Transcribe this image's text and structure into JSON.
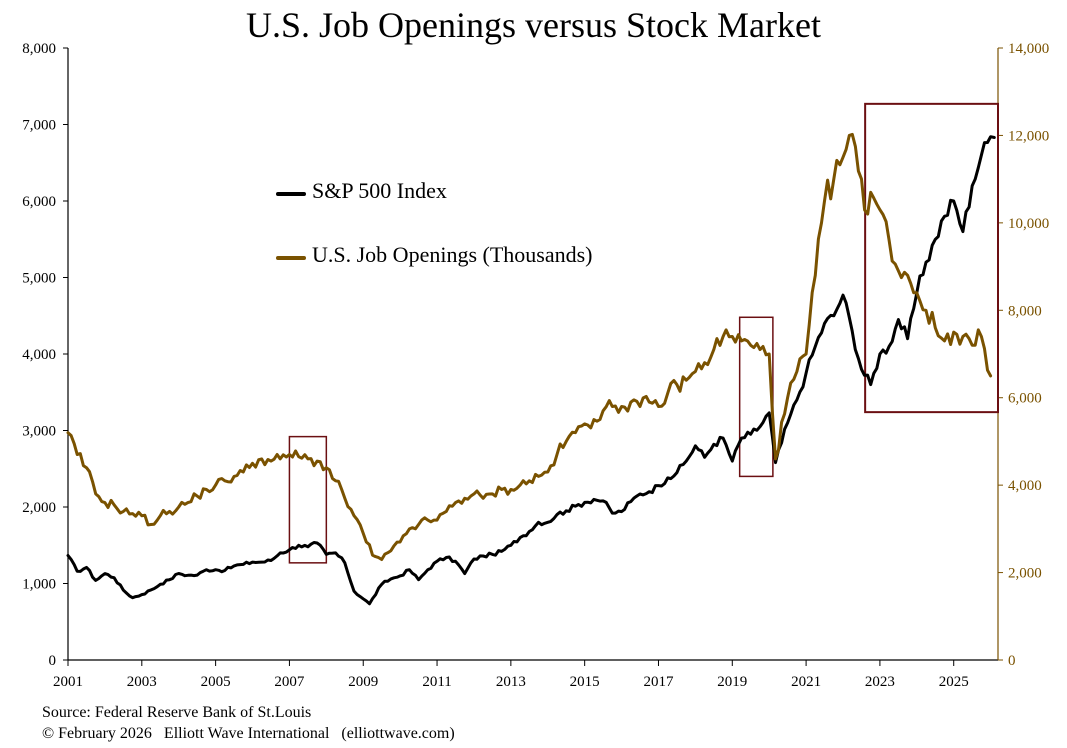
{
  "chart_data": {
    "type": "line",
    "title": "U.S. Job Openings versus Stock Market",
    "x_ticks": [
      "2001",
      "2003",
      "2005",
      "2007",
      "2009",
      "2011",
      "2013",
      "2015",
      "2017",
      "2019",
      "2021",
      "2023",
      "2025"
    ],
    "xlim": [
      2001,
      2026.2
    ],
    "left_axis": {
      "ylim": [
        0,
        8000
      ],
      "ticks": [
        "0",
        "1,000",
        "2,000",
        "3,000",
        "4,000",
        "5,000",
        "6,000",
        "7,000",
        "8,000"
      ],
      "color": "#000000"
    },
    "right_axis": {
      "ylim": [
        0,
        14000
      ],
      "ticks": [
        "0",
        "2,000",
        "4,000",
        "6,000",
        "8,000",
        "10,000",
        "12,000",
        "14,000"
      ],
      "color": "#7a5200"
    },
    "legend": {
      "placement": "upper-left"
    },
    "series": [
      {
        "name": "S&P 500 Index",
        "axis": "left",
        "color": "#000000",
        "points": [
          [
            2001.0,
            1366
          ],
          [
            2001.25,
            1160
          ],
          [
            2001.5,
            1211
          ],
          [
            2001.75,
            1040
          ],
          [
            2002.0,
            1130
          ],
          [
            2002.25,
            1076
          ],
          [
            2002.5,
            912
          ],
          [
            2002.75,
            815
          ],
          [
            2003.0,
            855
          ],
          [
            2003.25,
            916
          ],
          [
            2003.5,
            990
          ],
          [
            2003.75,
            1050
          ],
          [
            2004.0,
            1131
          ],
          [
            2004.25,
            1107
          ],
          [
            2004.5,
            1110
          ],
          [
            2004.75,
            1180
          ],
          [
            2005.0,
            1180
          ],
          [
            2005.25,
            1170
          ],
          [
            2005.5,
            1230
          ],
          [
            2005.75,
            1250
          ],
          [
            2006.0,
            1280
          ],
          [
            2006.25,
            1280
          ],
          [
            2006.5,
            1300
          ],
          [
            2006.75,
            1400
          ],
          [
            2007.0,
            1440
          ],
          [
            2007.25,
            1500
          ],
          [
            2007.5,
            1480
          ],
          [
            2007.75,
            1530
          ],
          [
            2008.0,
            1380
          ],
          [
            2008.25,
            1400
          ],
          [
            2008.5,
            1270
          ],
          [
            2008.75,
            900
          ],
          [
            2009.0,
            800
          ],
          [
            2009.17,
            735
          ],
          [
            2009.5,
            990
          ],
          [
            2009.75,
            1060
          ],
          [
            2010.0,
            1100
          ],
          [
            2010.25,
            1180
          ],
          [
            2010.5,
            1050
          ],
          [
            2010.75,
            1180
          ],
          [
            2011.0,
            1290
          ],
          [
            2011.25,
            1340
          ],
          [
            2011.5,
            1290
          ],
          [
            2011.75,
            1130
          ],
          [
            2012.0,
            1320
          ],
          [
            2012.25,
            1360
          ],
          [
            2012.5,
            1380
          ],
          [
            2012.75,
            1420
          ],
          [
            2013.0,
            1500
          ],
          [
            2013.25,
            1600
          ],
          [
            2013.5,
            1680
          ],
          [
            2013.75,
            1800
          ],
          [
            2014.0,
            1800
          ],
          [
            2014.25,
            1900
          ],
          [
            2014.5,
            1950
          ],
          [
            2014.75,
            2010
          ],
          [
            2015.0,
            2060
          ],
          [
            2015.25,
            2100
          ],
          [
            2015.5,
            2080
          ],
          [
            2015.75,
            1920
          ],
          [
            2016.0,
            1940
          ],
          [
            2016.25,
            2070
          ],
          [
            2016.5,
            2170
          ],
          [
            2016.75,
            2200
          ],
          [
            2017.0,
            2280
          ],
          [
            2017.25,
            2380
          ],
          [
            2017.5,
            2450
          ],
          [
            2017.75,
            2600
          ],
          [
            2018.0,
            2800
          ],
          [
            2018.25,
            2650
          ],
          [
            2018.5,
            2820
          ],
          [
            2018.75,
            2900
          ],
          [
            2019.0,
            2600
          ],
          [
            2019.25,
            2900
          ],
          [
            2019.5,
            2950
          ],
          [
            2019.75,
            3050
          ],
          [
            2020.0,
            3230
          ],
          [
            2020.17,
            2580
          ],
          [
            2020.5,
            3100
          ],
          [
            2020.75,
            3400
          ],
          [
            2021.0,
            3750
          ],
          [
            2021.25,
            4100
          ],
          [
            2021.5,
            4400
          ],
          [
            2021.75,
            4500
          ],
          [
            2022.0,
            4770
          ],
          [
            2022.25,
            4300
          ],
          [
            2022.5,
            3800
          ],
          [
            2022.75,
            3600
          ],
          [
            2023.0,
            4000
          ],
          [
            2023.25,
            4100
          ],
          [
            2023.5,
            4450
          ],
          [
            2023.75,
            4200
          ],
          [
            2024.0,
            4800
          ],
          [
            2024.25,
            5200
          ],
          [
            2024.5,
            5500
          ],
          [
            2024.75,
            5800
          ],
          [
            2025.0,
            6000
          ],
          [
            2025.25,
            5600
          ],
          [
            2025.5,
            6200
          ],
          [
            2025.75,
            6600
          ],
          [
            2026.0,
            6840
          ],
          [
            2026.1,
            6830
          ]
        ]
      },
      {
        "name": "U.S. Job Openings (Thousands)",
        "axis": "right",
        "color": "#7a5200",
        "points": [
          [
            2001.0,
            5200
          ],
          [
            2001.25,
            4700
          ],
          [
            2001.5,
            4400
          ],
          [
            2001.75,
            3800
          ],
          [
            2002.0,
            3600
          ],
          [
            2002.25,
            3550
          ],
          [
            2002.5,
            3400
          ],
          [
            2002.75,
            3350
          ],
          [
            2003.0,
            3300
          ],
          [
            2003.25,
            3100
          ],
          [
            2003.5,
            3300
          ],
          [
            2003.75,
            3400
          ],
          [
            2004.0,
            3500
          ],
          [
            2004.25,
            3600
          ],
          [
            2004.5,
            3750
          ],
          [
            2004.75,
            3900
          ],
          [
            2005.0,
            4000
          ],
          [
            2005.25,
            4100
          ],
          [
            2005.5,
            4200
          ],
          [
            2005.75,
            4300
          ],
          [
            2006.0,
            4500
          ],
          [
            2006.25,
            4600
          ],
          [
            2006.5,
            4550
          ],
          [
            2006.75,
            4600
          ],
          [
            2007.0,
            4700
          ],
          [
            2007.25,
            4650
          ],
          [
            2007.5,
            4600
          ],
          [
            2007.75,
            4550
          ],
          [
            2008.0,
            4400
          ],
          [
            2008.25,
            4100
          ],
          [
            2008.5,
            3700
          ],
          [
            2008.75,
            3300
          ],
          [
            2009.0,
            2900
          ],
          [
            2009.25,
            2400
          ],
          [
            2009.5,
            2300
          ],
          [
            2009.75,
            2500
          ],
          [
            2010.0,
            2700
          ],
          [
            2010.25,
            3000
          ],
          [
            2010.5,
            3100
          ],
          [
            2010.75,
            3200
          ],
          [
            2011.0,
            3200
          ],
          [
            2011.25,
            3400
          ],
          [
            2011.5,
            3600
          ],
          [
            2011.75,
            3700
          ],
          [
            2012.0,
            3800
          ],
          [
            2012.25,
            3700
          ],
          [
            2012.5,
            3800
          ],
          [
            2012.75,
            3900
          ],
          [
            2013.0,
            3900
          ],
          [
            2013.25,
            4000
          ],
          [
            2013.5,
            4100
          ],
          [
            2013.75,
            4200
          ],
          [
            2014.0,
            4300
          ],
          [
            2014.25,
            4700
          ],
          [
            2014.5,
            5000
          ],
          [
            2014.75,
            5200
          ],
          [
            2015.0,
            5400
          ],
          [
            2015.25,
            5500
          ],
          [
            2015.5,
            5700
          ],
          [
            2015.75,
            5800
          ],
          [
            2016.0,
            5800
          ],
          [
            2016.25,
            5900
          ],
          [
            2016.5,
            5800
          ],
          [
            2016.75,
            5900
          ],
          [
            2017.0,
            5800
          ],
          [
            2017.25,
            6100
          ],
          [
            2017.5,
            6300
          ],
          [
            2017.75,
            6400
          ],
          [
            2018.0,
            6600
          ],
          [
            2018.25,
            6800
          ],
          [
            2018.5,
            7100
          ],
          [
            2018.75,
            7400
          ],
          [
            2019.0,
            7400
          ],
          [
            2019.25,
            7300
          ],
          [
            2019.5,
            7200
          ],
          [
            2019.75,
            7100
          ],
          [
            2020.0,
            7000
          ],
          [
            2020.17,
            4600
          ],
          [
            2020.5,
            6000
          ],
          [
            2020.75,
            6600
          ],
          [
            2021.0,
            7000
          ],
          [
            2021.25,
            8800
          ],
          [
            2021.5,
            10500
          ],
          [
            2021.75,
            11000
          ],
          [
            2022.0,
            11500
          ],
          [
            2022.17,
            12000
          ],
          [
            2022.5,
            11000
          ],
          [
            2022.67,
            10200
          ],
          [
            2022.75,
            10700
          ],
          [
            2023.0,
            10300
          ],
          [
            2023.25,
            9600
          ],
          [
            2023.5,
            8900
          ],
          [
            2023.75,
            8800
          ],
          [
            2024.0,
            8400
          ],
          [
            2024.25,
            8000
          ],
          [
            2024.5,
            7600
          ],
          [
            2024.75,
            7300
          ],
          [
            2025.0,
            7500
          ],
          [
            2025.25,
            7400
          ],
          [
            2025.5,
            7200
          ],
          [
            2025.75,
            7400
          ],
          [
            2026.0,
            6500
          ]
        ]
      }
    ],
    "annotations": [
      {
        "type": "box",
        "x": [
          2007.0,
          2008.0
        ],
        "y_left": [
          1270,
          2920
        ]
      },
      {
        "type": "box",
        "x": [
          2019.2,
          2020.1
        ],
        "y_left": [
          2400,
          4480
        ]
      },
      {
        "type": "box",
        "x": [
          2022.6,
          2026.2
        ],
        "y_left": [
          3240,
          7270
        ]
      }
    ]
  },
  "source": "Source: Federal Reserve Bank of St.Louis",
  "copyright": "© February 2026   Elliott Wave International   (elliottwave.com)"
}
